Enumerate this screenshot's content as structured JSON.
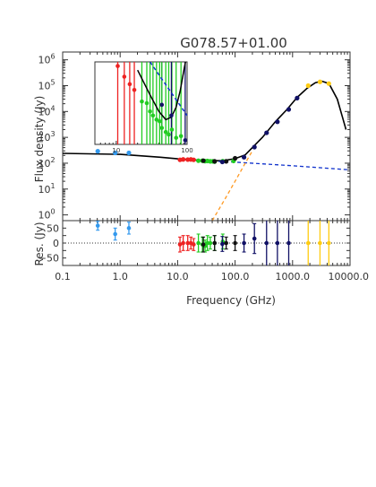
{
  "chart_data": [
    {
      "id": "main",
      "type": "scatter",
      "title": "G078.57+01.00",
      "ylabel": "Flux density (Jy)",
      "xscale": "log",
      "yscale": "log",
      "xlim": [
        0.1,
        10000
      ],
      "ylim": [
        0.6,
        2000000
      ],
      "yticks": [
        {
          "base": "10",
          "exp": "0",
          "v": 1
        },
        {
          "base": "10",
          "exp": "1",
          "v": 10
        },
        {
          "base": "10",
          "exp": "2",
          "v": 100
        },
        {
          "base": "10",
          "exp": "3",
          "v": 1000
        },
        {
          "base": "10",
          "exp": "4",
          "v": 10000
        },
        {
          "base": "10",
          "exp": "5",
          "v": 100000
        },
        {
          "base": "10",
          "exp": "6",
          "v": 1000000
        }
      ],
      "series": [
        {
          "color": "#3399ee",
          "points": [
            [
              0.408,
              290
            ],
            [
              0.82,
              250
            ],
            [
              1.42,
              250
            ]
          ]
        },
        {
          "color": "#ee2222",
          "points": [
            [
              11,
              135
            ],
            [
              12.5,
              140
            ],
            [
              15,
              138
            ],
            [
              17,
              140
            ],
            [
              19,
              135
            ]
          ]
        },
        {
          "color": "#22cc22",
          "points": [
            [
              23,
              125
            ],
            [
              27,
              125
            ],
            [
              30,
              120
            ],
            [
              33,
              122
            ],
            [
              37,
              118
            ],
            [
              41,
              118
            ],
            [
              44,
              115
            ],
            [
              61,
              120
            ],
            [
              94,
              122
            ]
          ]
        },
        {
          "color": "#111111",
          "points": [
            [
              28,
              125
            ],
            [
              44,
              118
            ],
            [
              70,
              118
            ],
            [
              100,
              155
            ]
          ]
        },
        {
          "color": "#111166",
          "points": [
            [
              60,
              112
            ],
            [
              143,
              170
            ],
            [
              217,
              420
            ],
            [
              353,
              1500
            ],
            [
              545,
              4000
            ],
            [
              857,
              12000
            ],
            [
              1200,
              33000
            ]
          ]
        },
        {
          "color": "#ffcc11",
          "points": [
            [
              1870,
              100000
            ],
            [
              3000,
              140000
            ],
            [
              4280,
              120000
            ]
          ]
        }
      ],
      "lines": [
        {
          "style": "solid",
          "color": "#000000",
          "points": [
            [
              0.1,
              240
            ],
            [
              1,
              220
            ],
            [
              5,
              170
            ],
            [
              10,
              148
            ],
            [
              30,
              125
            ],
            [
              60,
              125
            ],
            [
              100,
              150
            ],
            [
              150,
              210
            ],
            [
              200,
              400
            ],
            [
              300,
              1000
            ],
            [
              500,
              4000
            ],
            [
              800,
              12000
            ],
            [
              1200,
              35000
            ],
            [
              1800,
              80000
            ],
            [
              2500,
              130000
            ],
            [
              3200,
              150000
            ],
            [
              4300,
              120000
            ],
            [
              6000,
              30000
            ],
            [
              8500,
              2000
            ]
          ]
        },
        {
          "style": "dashed",
          "color": "#1133cc",
          "points": [
            [
              40,
              120
            ],
            [
              100,
              110
            ],
            [
              1000,
              80
            ],
            [
              10000,
              55
            ]
          ]
        },
        {
          "style": "dashed",
          "color": "#ff9922",
          "points": [
            [
              40,
              0.6
            ],
            [
              70,
              5
            ],
            [
              100,
              20
            ],
            [
              150,
              100
            ],
            [
              200,
              300
            ]
          ]
        }
      ]
    },
    {
      "id": "inset",
      "type": "scatter",
      "xscale": "log",
      "xlim": [
        5,
        100
      ],
      "xticks": [
        {
          "v": 10,
          "label": "10"
        },
        {
          "v": 100,
          "label": "100"
        }
      ],
      "series": [
        {
          "color": "#ee2222",
          "points": [
            [
              10.5,
              0.95
            ],
            [
              13,
              0.82
            ],
            [
              15.5,
              0.73
            ],
            [
              18,
              0.66
            ]
          ]
        },
        {
          "color": "#22cc22",
          "points": [
            [
              23,
              0.52
            ],
            [
              30,
              0.4
            ],
            [
              41,
              0.28
            ],
            [
              61,
              0.18
            ],
            [
              82,
              0.1
            ]
          ]
        },
        {
          "color": "#111166",
          "points": [
            [
              44,
              0.48
            ],
            [
              60,
              0.35
            ],
            [
              94,
              0.05
            ]
          ]
        },
        {
          "color": "#22cc22",
          "points": [
            [
              27,
              0.5
            ],
            [
              33,
              0.35
            ],
            [
              37,
              0.3
            ],
            [
              44,
              0.2
            ],
            [
              50,
              0.15
            ],
            [
              55,
              0.12
            ],
            [
              70,
              0.08
            ]
          ]
        }
      ],
      "lines": [
        {
          "style": "solid",
          "color": "#000000",
          "points": [
            [
              20,
              0.9
            ],
            [
              30,
              0.6
            ],
            [
              40,
              0.4
            ],
            [
              50,
              0.3
            ],
            [
              60,
              0.33
            ],
            [
              70,
              0.45
            ],
            [
              80,
              0.65
            ],
            [
              90,
              0.9
            ],
            [
              100,
              1.1
            ]
          ]
        },
        {
          "style": "dashed",
          "color": "#1133cc",
          "points": [
            [
              30,
              1.0
            ],
            [
              100,
              0.35
            ]
          ]
        }
      ]
    },
    {
      "id": "residuals",
      "type": "scatter",
      "ylabel": "Res. (Jy)",
      "xlabel": "Frequency (GHz)",
      "xscale": "log",
      "xlim": [
        0.1,
        10000
      ],
      "ylim": [
        -75,
        75
      ],
      "yticks": [
        50,
        25,
        0,
        -25,
        -50
      ],
      "ytick_labels": [
        "50",
        "",
        "0",
        "",
        "−50"
      ],
      "xticks": [
        {
          "v": 0.1,
          "label": "0.1"
        },
        {
          "v": 1,
          "label": "1.0"
        },
        {
          "v": 10,
          "label": "10.0"
        },
        {
          "v": 100,
          "label": "100.0"
        },
        {
          "v": 1000,
          "label": "1000.0"
        },
        {
          "v": 10000,
          "label": "10000.0"
        }
      ],
      "series": [
        {
          "color": "#3399ee",
          "points": [
            [
              0.408,
              58,
              15
            ],
            [
              0.82,
              30,
              20
            ],
            [
              1.42,
              50,
              20
            ]
          ]
        },
        {
          "color": "#ee2222",
          "points": [
            [
              11,
              -5,
              25
            ],
            [
              12.5,
              0,
              25
            ],
            [
              15,
              0,
              25
            ],
            [
              17,
              0,
              20
            ],
            [
              19,
              -5,
              20
            ]
          ]
        },
        {
          "color": "#22cc22",
          "points": [
            [
              23,
              0,
              30
            ],
            [
              27,
              -5,
              25
            ],
            [
              30,
              -10,
              20
            ],
            [
              33,
              0,
              25
            ],
            [
              37,
              0,
              20
            ],
            [
              44,
              0,
              25
            ],
            [
              61,
              5,
              25
            ]
          ]
        },
        {
          "color": "#111111",
          "points": [
            [
              28,
              -5,
              25
            ],
            [
              44,
              0,
              25
            ],
            [
              70,
              0,
              20
            ],
            [
              100,
              0,
              25
            ]
          ]
        },
        {
          "color": "#111166",
          "points": [
            [
              60,
              -3,
              25
            ],
            [
              143,
              0,
              30
            ],
            [
              217,
              15,
              50
            ],
            [
              353,
              0,
              100
            ],
            [
              545,
              0,
              100
            ],
            [
              857,
              0,
              100
            ]
          ]
        },
        {
          "color": "#ffcc11",
          "points": [
            [
              1870,
              0,
              100
            ],
            [
              3000,
              0,
              100
            ],
            [
              4280,
              0,
              100
            ]
          ]
        }
      ]
    }
  ]
}
